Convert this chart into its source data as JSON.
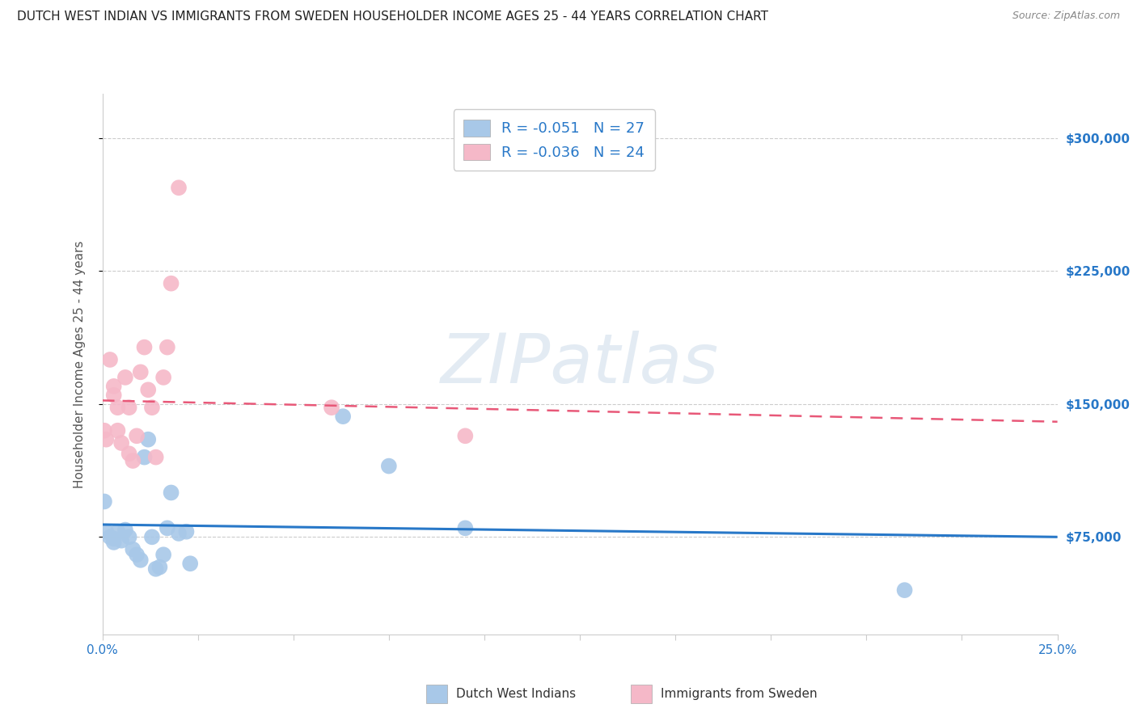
{
  "title": "DUTCH WEST INDIAN VS IMMIGRANTS FROM SWEDEN HOUSEHOLDER INCOME AGES 25 - 44 YEARS CORRELATION CHART",
  "source": "Source: ZipAtlas.com",
  "ylabel": "Householder Income Ages 25 - 44 years",
  "yaxis_labels": [
    "$75,000",
    "$150,000",
    "$225,000",
    "$300,000"
  ],
  "yaxis_values": [
    75000,
    150000,
    225000,
    300000
  ],
  "xmin": 0.0,
  "xmax": 0.25,
  "ymin": 20000,
  "ymax": 325000,
  "legend_r_blue": "-0.051",
  "legend_n_blue": "27",
  "legend_r_pink": "-0.036",
  "legend_n_pink": "24",
  "legend_label_blue": "Dutch West Indians",
  "legend_label_pink": "Immigrants from Sweden",
  "blue_color": "#a8c8e8",
  "pink_color": "#f5b8c8",
  "blue_line_color": "#2878c8",
  "pink_line_color": "#e85878",
  "text_blue": "#2878c8",
  "text_dark": "#333333",
  "watermark": "ZIPatlas",
  "blue_scatter_x": [
    0.0005,
    0.001,
    0.002,
    0.003,
    0.003,
    0.004,
    0.005,
    0.006,
    0.007,
    0.008,
    0.009,
    0.01,
    0.011,
    0.012,
    0.013,
    0.014,
    0.015,
    0.016,
    0.017,
    0.018,
    0.02,
    0.022,
    0.023,
    0.063,
    0.075,
    0.095,
    0.21
  ],
  "blue_scatter_y": [
    95000,
    78000,
    75000,
    74000,
    72000,
    78000,
    73000,
    79000,
    75000,
    68000,
    65000,
    62000,
    120000,
    130000,
    75000,
    57000,
    58000,
    65000,
    80000,
    100000,
    77000,
    78000,
    60000,
    143000,
    115000,
    80000,
    45000
  ],
  "pink_scatter_x": [
    0.0005,
    0.001,
    0.002,
    0.003,
    0.003,
    0.004,
    0.004,
    0.005,
    0.006,
    0.007,
    0.007,
    0.008,
    0.009,
    0.01,
    0.011,
    0.012,
    0.013,
    0.014,
    0.016,
    0.017,
    0.018,
    0.02,
    0.06,
    0.095
  ],
  "pink_scatter_y": [
    135000,
    130000,
    175000,
    160000,
    155000,
    148000,
    135000,
    128000,
    165000,
    148000,
    122000,
    118000,
    132000,
    168000,
    182000,
    158000,
    148000,
    120000,
    165000,
    182000,
    218000,
    272000,
    148000,
    132000
  ],
  "blue_line_x": [
    0.0,
    0.25
  ],
  "blue_line_y": [
    82000,
    75000
  ],
  "pink_line_x": [
    0.0,
    0.25
  ],
  "pink_line_y": [
    152000,
    140000
  ],
  "title_fontsize": 11,
  "axis_label_fontsize": 11,
  "tick_fontsize": 11,
  "scatter_size": 200,
  "background_color": "#ffffff",
  "grid_color": "#cccccc",
  "right_label_color": "#2878c8"
}
